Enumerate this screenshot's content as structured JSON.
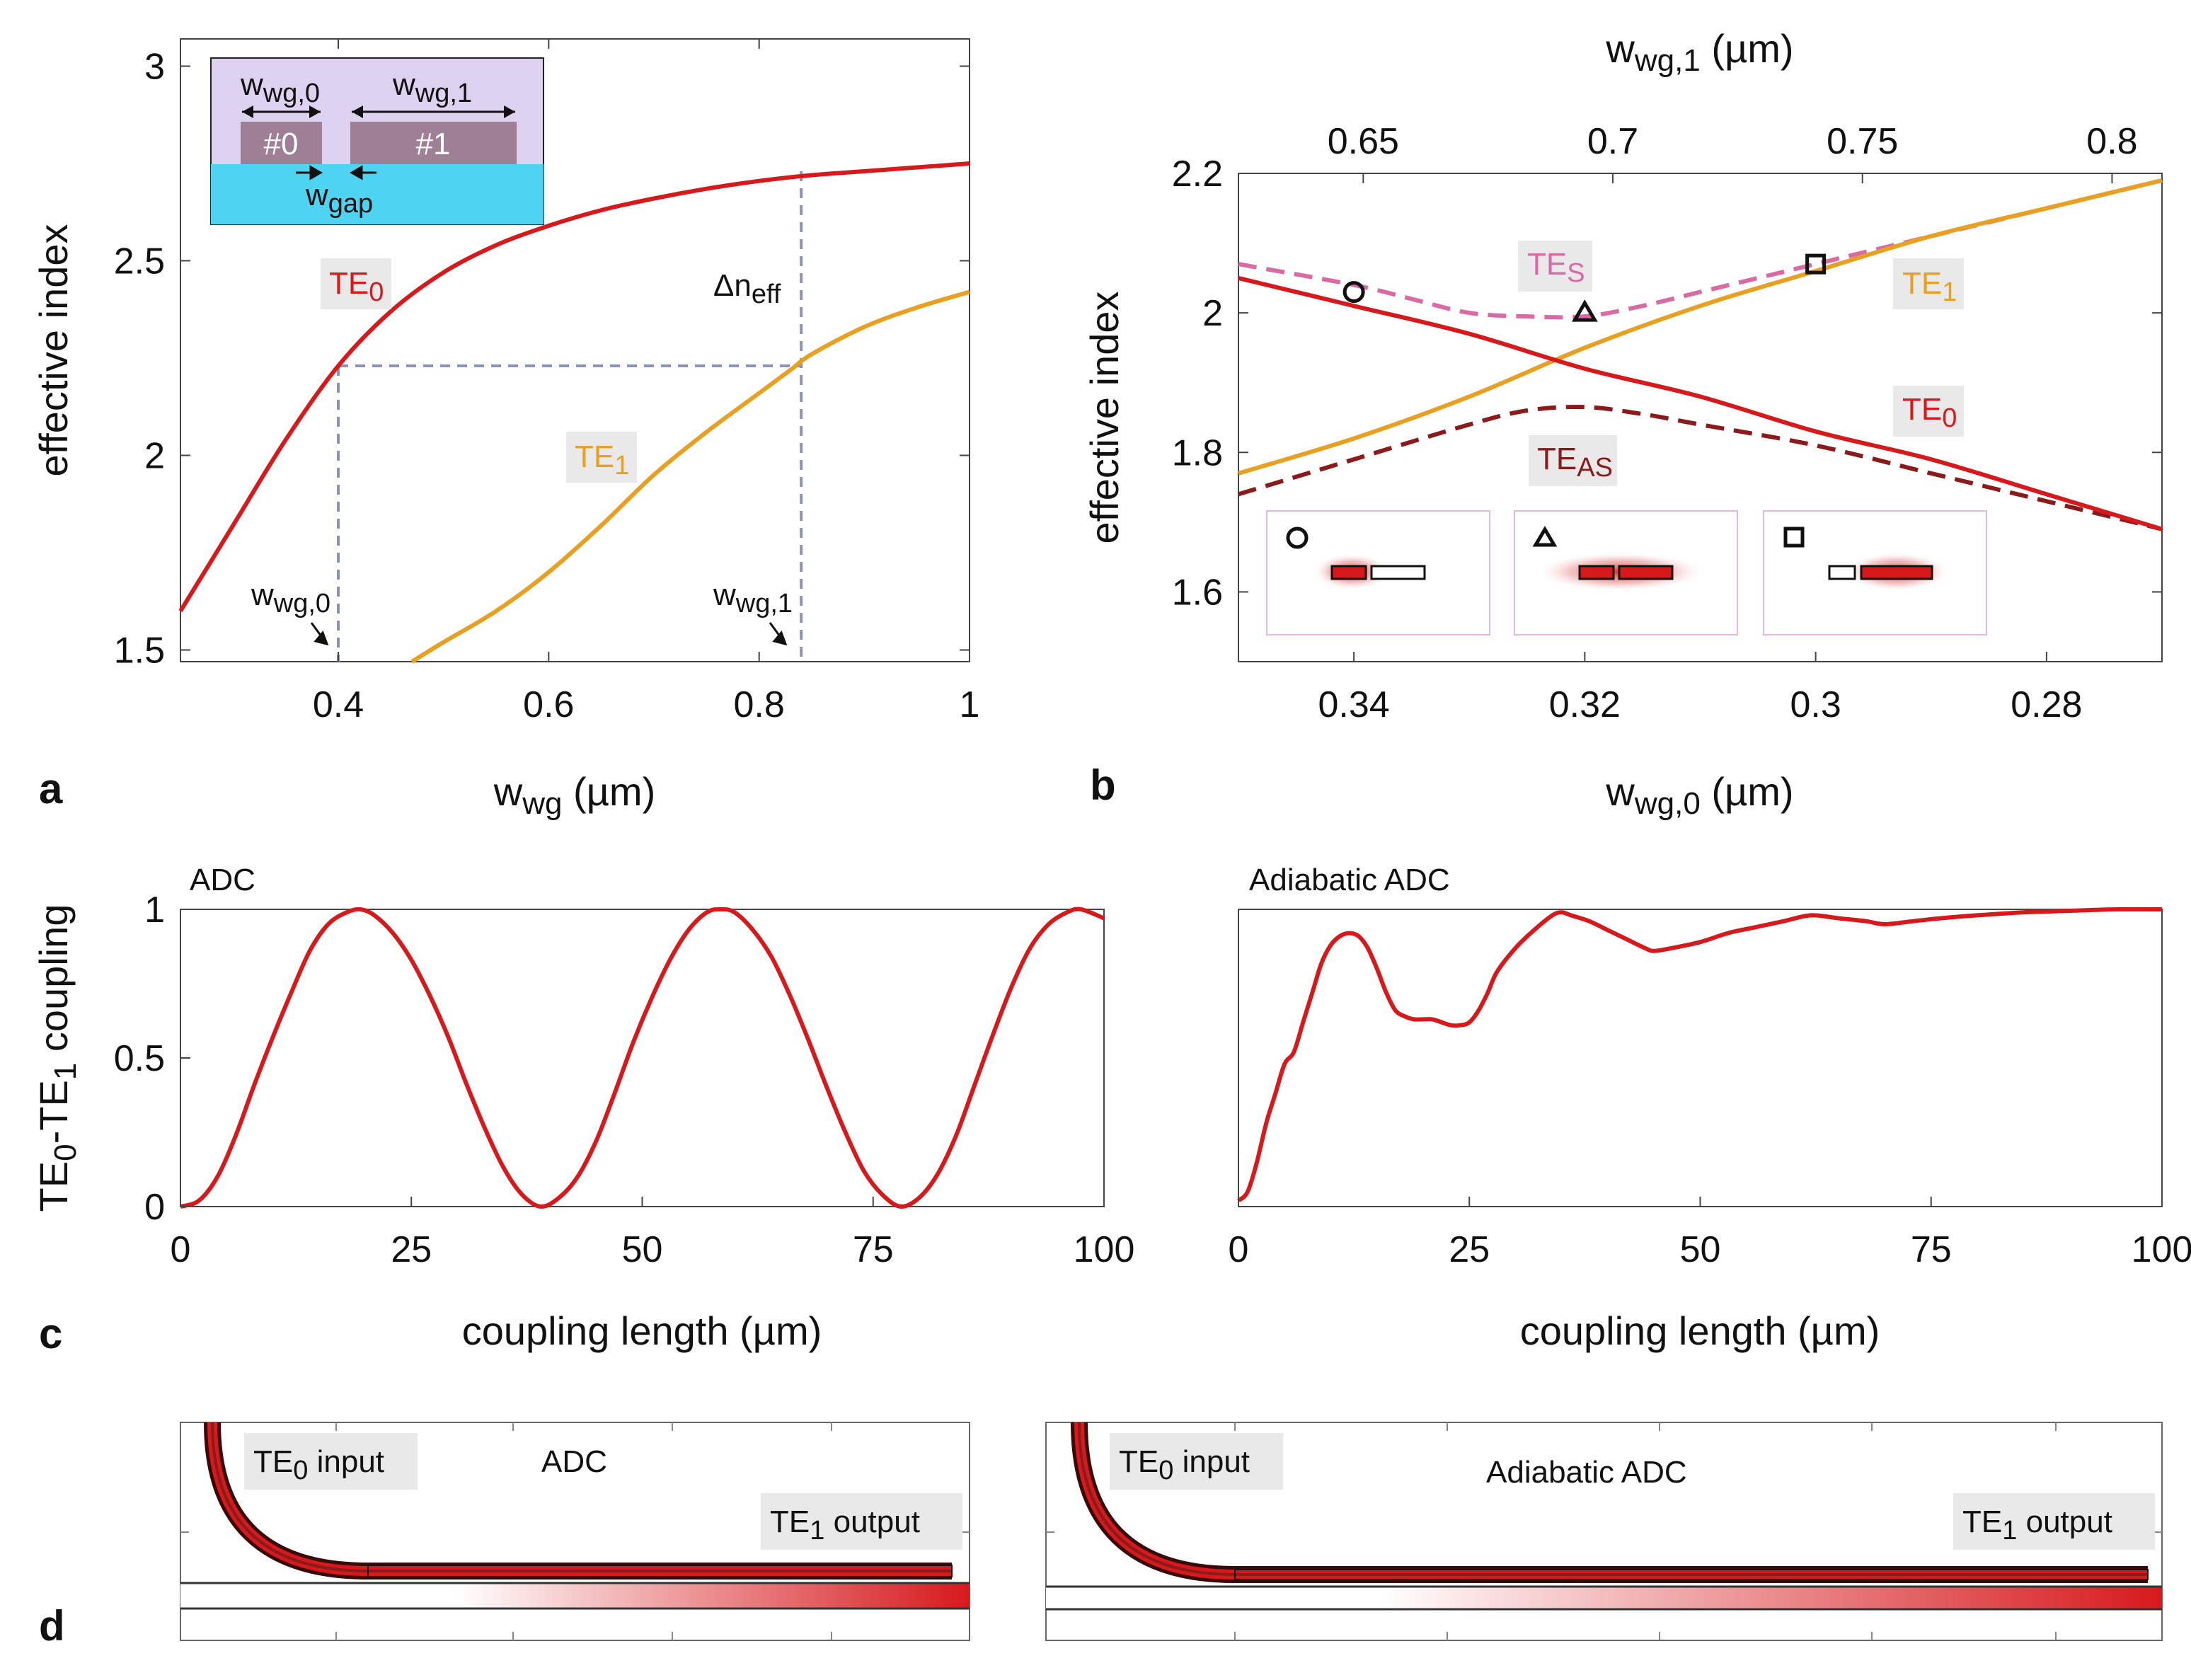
{
  "colors": {
    "te0": "#d7191c",
    "te1": "#e9a020",
    "tes": "#d96aa3",
    "teas": "#8b1a1a",
    "guide": "#8a93b8",
    "inset_bg": "#ddd3f1",
    "inset_substrate": "#4fd3f2",
    "inset_wg": "#9e7f96",
    "label_bg": "#e9e9e9"
  },
  "panels": {
    "a": "a",
    "b": "b",
    "c": "c",
    "d": "d"
  },
  "chart_data": [
    {
      "id": "a",
      "type": "line",
      "xlabel": "w",
      "xlabel_sub": "wg",
      "xlabel_unit": " (µm)",
      "ylabel": "effective index",
      "xlim": [
        0.25,
        1.0
      ],
      "ylim": [
        1.47,
        3.07
      ],
      "xticks": [
        0.4,
        0.6,
        0.8,
        1
      ],
      "xtick_labels": [
        "0.4",
        "0.6",
        "0.8",
        "1"
      ],
      "yticks": [
        1.5,
        2,
        2.5,
        3
      ],
      "ytick_labels": [
        "1.5",
        "2",
        "2.5",
        "3"
      ],
      "series": [
        {
          "name": "TE0",
          "label_main": "TE",
          "label_sub": "0",
          "x": [
            0.25,
            0.3,
            0.35,
            0.4,
            0.45,
            0.5,
            0.55,
            0.6,
            0.65,
            0.7,
            0.75,
            0.8,
            0.85,
            0.9,
            0.95,
            1.0
          ],
          "y": [
            1.6,
            1.82,
            2.04,
            2.23,
            2.37,
            2.47,
            2.54,
            2.59,
            2.63,
            2.66,
            2.685,
            2.705,
            2.72,
            2.73,
            2.74,
            2.75
          ]
        },
        {
          "name": "TE1",
          "label_main": "TE",
          "label_sub": "1",
          "x": [
            0.47,
            0.5,
            0.55,
            0.6,
            0.65,
            0.7,
            0.75,
            0.8,
            0.83,
            0.85,
            0.9,
            0.95,
            1.0
          ],
          "y": [
            1.47,
            1.52,
            1.6,
            1.7,
            1.82,
            1.95,
            2.06,
            2.16,
            2.22,
            2.26,
            2.33,
            2.38,
            2.42
          ]
        }
      ],
      "annotations": {
        "w0_main": "w",
        "w0_sub": "wg,0",
        "w0_value": 0.4,
        "w1_main": "w",
        "w1_sub": "wg,1",
        "w1_value": 0.84,
        "guide_y": 2.23,
        "guide_y_top": 2.73,
        "dn_main": "Δn",
        "dn_sub": "eff"
      },
      "inset": {
        "wg0_label_main": "w",
        "wg0_label_sub": "wg,0",
        "wg1_label_main": "w",
        "wg1_label_sub": "wg,1",
        "gap_label_main": "w",
        "gap_label_sub": "gap",
        "wg0_name": "#0",
        "wg1_name": "#1"
      }
    },
    {
      "id": "b",
      "type": "line",
      "xlabel": "w",
      "xlabel_sub": "wg,0",
      "xlabel_unit": " (µm)",
      "top_xlabel": "w",
      "top_xlabel_sub": "wg,1",
      "top_xlabel_unit": " (µm)",
      "ylabel": "effective index",
      "xlim": [
        0.35,
        0.27
      ],
      "ylim": [
        1.5,
        2.2
      ],
      "xticks": [
        0.34,
        0.32,
        0.3,
        0.28
      ],
      "xtick_labels": [
        "0.34",
        "0.32",
        "0.3",
        "0.28"
      ],
      "top_xticks": [
        0.65,
        0.7,
        0.75,
        0.8
      ],
      "top_xtick_labels": [
        "0.65",
        "0.7",
        "0.75",
        "0.8"
      ],
      "top_xlim": [
        0.625,
        0.81
      ],
      "yticks": [
        1.6,
        1.8,
        2.0,
        2.2
      ],
      "ytick_labels": [
        "1.6",
        "1.8",
        "2",
        "2.2"
      ],
      "series": [
        {
          "name": "TE0",
          "label_main": "TE",
          "label_sub": "0",
          "style": "solid",
          "x": [
            0.35,
            0.34,
            0.33,
            0.32,
            0.31,
            0.3,
            0.29,
            0.28,
            0.27
          ],
          "y": [
            2.05,
            2.01,
            1.97,
            1.92,
            1.88,
            1.83,
            1.79,
            1.74,
            1.69
          ]
        },
        {
          "name": "TE1",
          "label_main": "TE",
          "label_sub": "1",
          "style": "solid",
          "x": [
            0.35,
            0.34,
            0.33,
            0.32,
            0.31,
            0.3,
            0.29,
            0.28,
            0.27
          ],
          "y": [
            1.77,
            1.82,
            1.88,
            1.95,
            2.01,
            2.06,
            2.11,
            2.15,
            2.19
          ]
        },
        {
          "name": "TES",
          "label_main": "TE",
          "label_sub": "S",
          "style": "dashed",
          "x": [
            0.35,
            0.34,
            0.335,
            0.33,
            0.325,
            0.32,
            0.315,
            0.31,
            0.305,
            0.3,
            0.29,
            0.28,
            0.27
          ],
          "y": [
            2.07,
            2.04,
            2.02,
            2.0,
            1.995,
            1.995,
            2.01,
            2.03,
            2.05,
            2.07,
            2.11,
            2.15,
            2.19
          ]
        },
        {
          "name": "TEAS",
          "label_main": "TE",
          "label_sub": "AS",
          "style": "dashed",
          "x": [
            0.35,
            0.34,
            0.33,
            0.325,
            0.32,
            0.315,
            0.31,
            0.3,
            0.29,
            0.28,
            0.27
          ],
          "y": [
            1.74,
            1.79,
            1.84,
            1.86,
            1.865,
            1.855,
            1.84,
            1.81,
            1.77,
            1.73,
            1.69
          ]
        }
      ],
      "markers": [
        {
          "shape": "circle",
          "x": 0.34,
          "y": 2.03
        },
        {
          "shape": "triangle",
          "x": 0.32,
          "y": 1.998
        },
        {
          "shape": "square",
          "x": 0.3,
          "y": 2.07
        }
      ],
      "mode_insets": [
        "circle",
        "triangle",
        "square"
      ]
    },
    {
      "id": "c-left",
      "type": "line",
      "title": "ADC",
      "xlabel": "coupling length (µm)",
      "ylabel_main": "TE",
      "ylabel_sub0": "0",
      "ylabel_mid": "-TE",
      "ylabel_sub1": "1",
      "ylabel_tail": " coupling",
      "xlim": [
        0,
        100
      ],
      "ylim": [
        0,
        1
      ],
      "xticks": [
        0,
        25,
        50,
        75,
        100
      ],
      "xtick_labels": [
        "0",
        "25",
        "50",
        "75",
        "100"
      ],
      "yticks": [
        0,
        0.5,
        1
      ],
      "ytick_labels": [
        "0",
        "0.5",
        "1"
      ],
      "series": [
        {
          "name": "ADC coupling",
          "x": [
            0,
            2,
            4,
            6,
            8,
            10,
            12,
            14,
            16,
            18,
            19.5,
            21,
            23,
            25,
            27,
            29,
            31,
            33,
            35,
            37,
            39,
            41,
            43,
            45,
            47,
            49,
            51,
            53,
            55,
            57,
            58.5,
            60,
            62,
            64,
            66,
            68,
            70,
            72,
            74,
            76,
            78,
            80,
            82,
            84,
            86,
            88,
            90,
            92,
            94,
            96,
            97.5,
            100
          ],
          "y": [
            0,
            0.02,
            0.1,
            0.24,
            0.41,
            0.57,
            0.72,
            0.86,
            0.95,
            0.99,
            1.0,
            0.98,
            0.92,
            0.83,
            0.71,
            0.57,
            0.41,
            0.26,
            0.13,
            0.04,
            0.0,
            0.03,
            0.1,
            0.22,
            0.38,
            0.55,
            0.7,
            0.83,
            0.93,
            0.99,
            1.0,
            0.99,
            0.93,
            0.84,
            0.71,
            0.56,
            0.4,
            0.25,
            0.12,
            0.04,
            0.0,
            0.03,
            0.11,
            0.24,
            0.41,
            0.58,
            0.74,
            0.87,
            0.95,
            0.99,
            1.0,
            0.97
          ]
        }
      ]
    },
    {
      "id": "c-right",
      "type": "line",
      "title": "Adiabatic ADC",
      "xlabel": "coupling length (µm)",
      "xlim": [
        0,
        100
      ],
      "ylim": [
        0,
        1
      ],
      "xticks": [
        0,
        25,
        50,
        75,
        100
      ],
      "xtick_labels": [
        "0",
        "25",
        "50",
        "75",
        "100"
      ],
      "series": [
        {
          "name": "Adiabatic ADC coupling",
          "x": [
            0,
            1,
            2,
            3,
            4,
            5,
            6,
            7,
            8,
            9,
            10,
            11,
            12,
            13,
            14,
            15,
            16,
            17,
            18,
            19,
            20,
            21,
            22,
            23,
            24,
            25,
            26,
            27,
            28,
            30,
            32,
            34,
            35,
            36,
            38,
            40,
            42,
            44,
            45,
            47,
            50,
            53,
            56,
            59,
            62,
            65,
            68,
            70,
            73,
            76,
            80,
            85,
            90,
            95,
            100
          ],
          "y": [
            0.02,
            0.05,
            0.15,
            0.28,
            0.38,
            0.48,
            0.52,
            0.62,
            0.72,
            0.82,
            0.88,
            0.91,
            0.92,
            0.91,
            0.87,
            0.8,
            0.72,
            0.66,
            0.64,
            0.63,
            0.63,
            0.63,
            0.62,
            0.61,
            0.61,
            0.62,
            0.66,
            0.72,
            0.79,
            0.87,
            0.93,
            0.98,
            0.99,
            0.98,
            0.96,
            0.93,
            0.9,
            0.87,
            0.86,
            0.87,
            0.89,
            0.92,
            0.94,
            0.96,
            0.98,
            0.97,
            0.96,
            0.95,
            0.96,
            0.97,
            0.98,
            0.99,
            0.995,
            1.0,
            1.0
          ]
        }
      ]
    }
  ],
  "panel_d": {
    "left": {
      "title": "ADC",
      "input_main": "TE",
      "input_sub": "0",
      "input_tail": " input",
      "output_main": "TE",
      "output_sub": "1",
      "output_tail": " output"
    },
    "right": {
      "title": "Adiabatic ADC",
      "input_main": "TE",
      "input_sub": "0",
      "input_tail": " input",
      "output_main": "TE",
      "output_sub": "1",
      "output_tail": " output"
    }
  }
}
